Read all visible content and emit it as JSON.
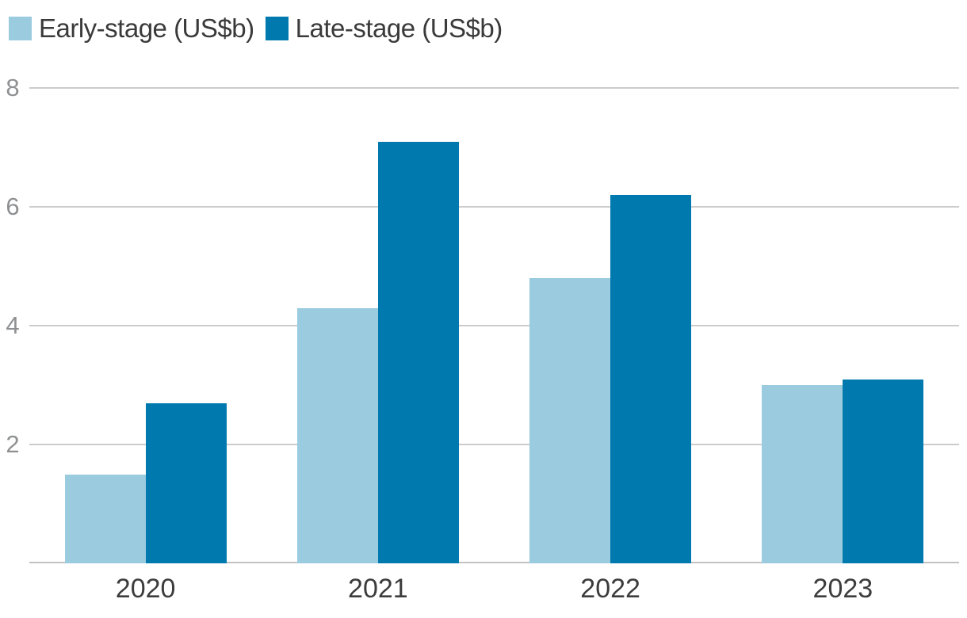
{
  "chart_data": {
    "type": "bar",
    "title": "",
    "categories": [
      "2020",
      "2021",
      "2022",
      "2023"
    ],
    "series": [
      {
        "name": "Early-stage (US$b)",
        "color": "#9ACBDF",
        "values": [
          1.5,
          4.3,
          4.8,
          3.0
        ]
      },
      {
        "name": "Late-stage (US$b)",
        "color": "#0079AE",
        "values": [
          2.7,
          7.1,
          6.2,
          3.1
        ]
      }
    ],
    "xlabel": "",
    "ylabel": "",
    "ylim": [
      0,
      8
    ],
    "yticks": [
      2,
      4,
      6,
      8
    ],
    "grid": true,
    "gridline_color": "#cccccc",
    "baseline_color": "#c2c2c2",
    "legend_position": "top-left"
  }
}
